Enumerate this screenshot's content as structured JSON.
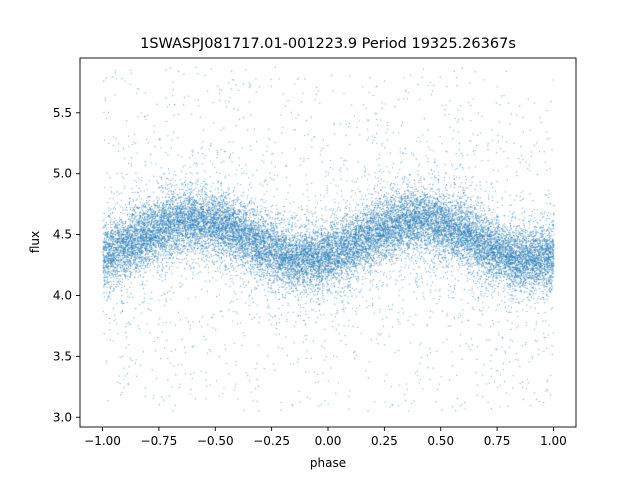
{
  "chart_data": {
    "type": "scatter",
    "title": "1SWASPJ081717.01-001223.9 Period 19325.26367s",
    "xlabel": "phase",
    "ylabel": "flux",
    "xlim": [
      -1.1,
      1.1
    ],
    "ylim": [
      2.92,
      5.95
    ],
    "xticks": [
      -1.0,
      -0.75,
      -0.5,
      -0.25,
      0.0,
      0.25,
      0.5,
      0.75,
      1.0
    ],
    "xtick_labels": [
      "−1.00",
      "−0.75",
      "−0.50",
      "−0.25",
      "0.00",
      "0.25",
      "0.50",
      "0.75",
      "1.00"
    ],
    "yticks": [
      3.0,
      3.5,
      4.0,
      4.5,
      5.0,
      5.5
    ],
    "ytick_labels": [
      "3.0",
      "3.5",
      "4.0",
      "4.5",
      "5.0",
      "5.5"
    ],
    "grid": false,
    "marker_color": "#1f77b4",
    "series": [
      {
        "phase_range": [
          -1.0,
          1.0
        ],
        "mean_flux": 4.46,
        "amplitude": 0.16,
        "peak_phases": [
          -0.6,
          0.4
        ],
        "trough_phases": [
          -0.15,
          0.85
        ],
        "scatter_sigma": 0.13,
        "outlier_range": [
          3.05,
          5.88
        ],
        "point_count": 21000
      }
    ]
  }
}
